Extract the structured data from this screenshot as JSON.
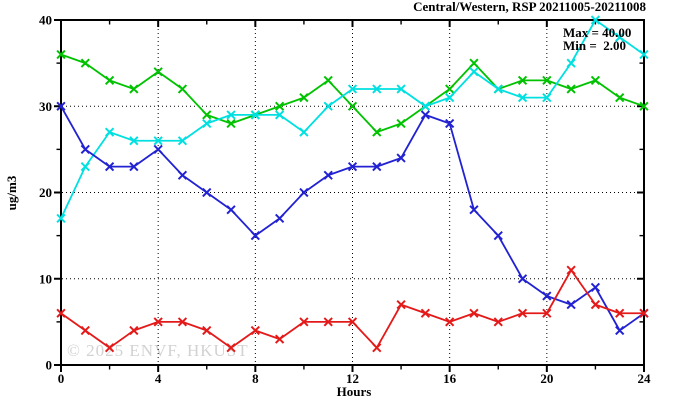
{
  "title": "Central/Western, RSP 20211005-20211008",
  "watermark": "© 2025 ENVF, HKUST",
  "colors": {
    "series_green": "#00C200",
    "series_cyan": "#00E0E0",
    "series_blue": "#2222D2",
    "series_red": "#E41A1A",
    "axis": "#000000",
    "watermark": "#D2D2D2",
    "background": "#FFFFFF"
  },
  "chart_data": {
    "type": "line",
    "title": "Central/Western, RSP 20211005-20211008",
    "xlabel": "Hours",
    "ylabel": "ug/m3",
    "xlim": [
      0,
      24
    ],
    "ylim": [
      0,
      40
    ],
    "x_ticks_major": [
      0,
      4,
      8,
      12,
      16,
      20,
      24
    ],
    "x_ticks_minor": [
      2,
      6,
      10,
      14,
      18,
      22
    ],
    "y_ticks_major": [
      0,
      10,
      20,
      30,
      40
    ],
    "y_ticks_minor": [
      5,
      15,
      25,
      35
    ],
    "grid_x": [
      4,
      8,
      12,
      16,
      20
    ],
    "grid_y": [
      10,
      20,
      30
    ],
    "grid_style": "dotted",
    "legend": "none",
    "annotations": {
      "max_label": "Max = 40.00",
      "min_label": "Min =  2.00"
    },
    "x": [
      0,
      1,
      2,
      3,
      4,
      5,
      6,
      7,
      8,
      9,
      10,
      11,
      12,
      13,
      14,
      15,
      16,
      17,
      18,
      19,
      20,
      21,
      22,
      23,
      24
    ],
    "series": [
      {
        "name": "green-series",
        "color": "#00C200",
        "values": [
          36,
          35,
          33,
          32,
          34,
          32,
          29,
          28,
          29,
          30,
          31,
          33,
          30,
          27,
          28,
          30,
          32,
          35,
          32,
          33,
          33,
          32,
          33,
          31,
          30
        ]
      },
      {
        "name": "cyan-series",
        "color": "#00E0E0",
        "values": [
          17,
          23,
          27,
          26,
          26,
          26,
          28,
          29,
          29,
          29,
          27,
          30,
          32,
          32,
          32,
          30,
          31,
          34,
          32,
          31,
          31,
          35,
          40,
          38,
          36
        ]
      },
      {
        "name": "blue-series",
        "color": "#2222D2",
        "values": [
          30,
          25,
          23,
          23,
          25,
          22,
          20,
          18,
          15,
          17,
          20,
          22,
          23,
          23,
          24,
          29,
          28,
          18,
          15,
          10,
          8,
          7,
          9,
          4,
          6
        ]
      },
      {
        "name": "red-series",
        "color": "#E41A1A",
        "values": [
          6,
          4,
          2,
          4,
          5,
          5,
          4,
          2,
          4,
          3,
          5,
          5,
          5,
          2,
          7,
          6,
          5,
          6,
          5,
          6,
          6,
          11,
          7,
          6,
          6
        ]
      }
    ]
  }
}
